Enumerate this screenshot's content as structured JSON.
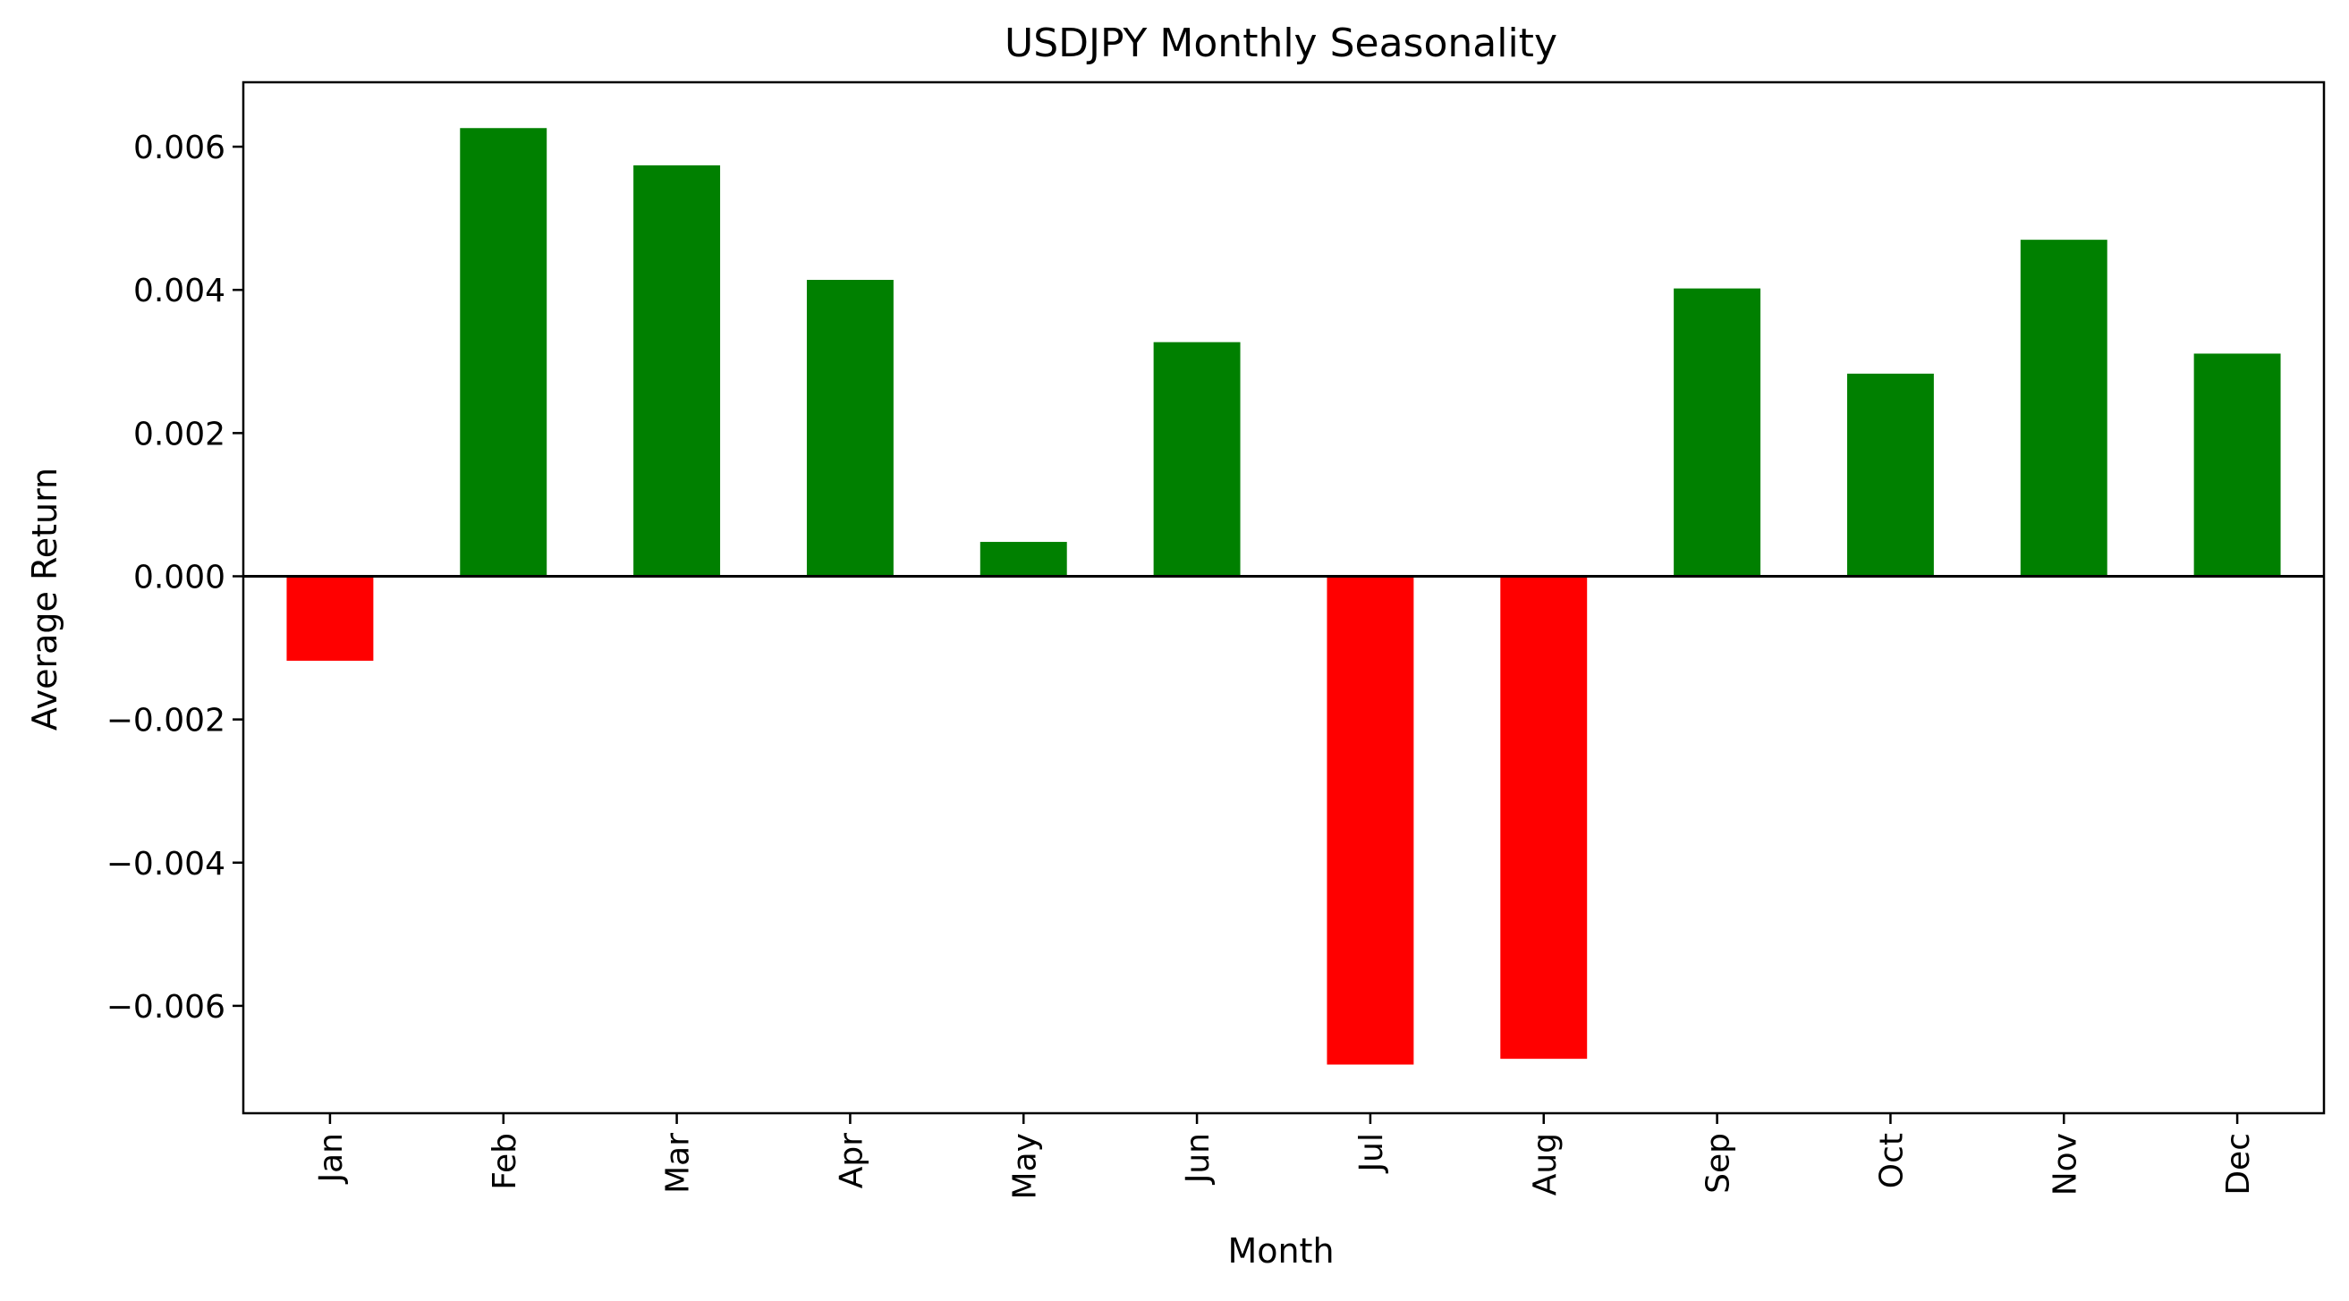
{
  "chart_data": {
    "type": "bar",
    "title": "USDJPY Monthly Seasonality",
    "xlabel": "Month",
    "ylabel": "Average Return",
    "categories": [
      "Jan",
      "Feb",
      "Mar",
      "Apr",
      "May",
      "Jun",
      "Jul",
      "Aug",
      "Sep",
      "Oct",
      "Nov",
      "Dec"
    ],
    "values": [
      -0.00118,
      0.00626,
      0.00574,
      0.00414,
      0.00048,
      0.00327,
      -0.00682,
      -0.00674,
      0.00402,
      0.00283,
      0.0047,
      0.00311
    ],
    "ylim": [
      -0.0075,
      0.0069
    ],
    "yticks": [
      -0.006,
      -0.004,
      -0.002,
      0.0,
      0.002,
      0.004,
      0.006
    ],
    "ytick_labels": [
      "−0.006",
      "−0.004",
      "−0.002",
      "0.000",
      "0.002",
      "0.004",
      "0.006"
    ],
    "grid": false,
    "legend": "none",
    "zero_line": true,
    "colors": {
      "positive": "#008000",
      "negative": "#ff0000",
      "axis": "#000000"
    }
  }
}
